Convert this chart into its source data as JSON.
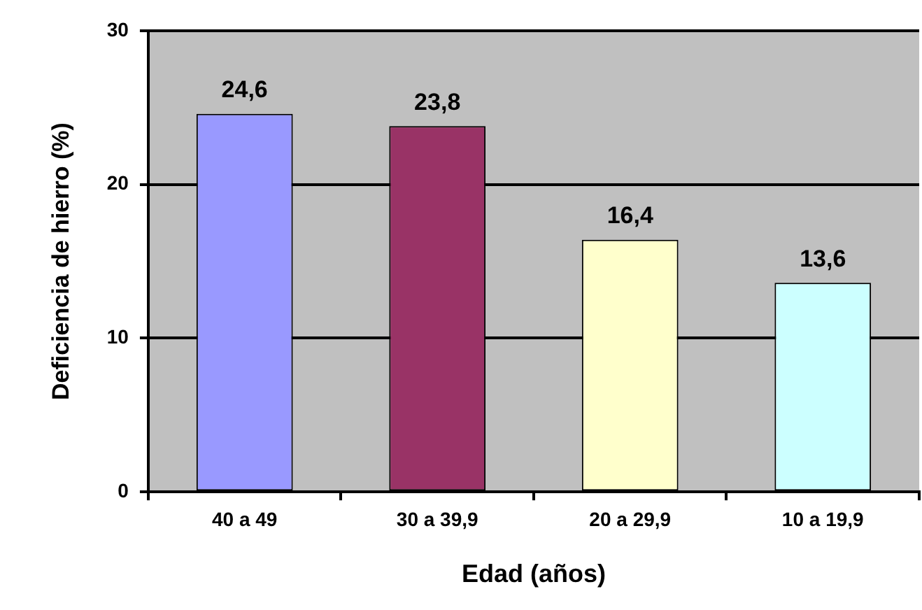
{
  "chart_data": {
    "type": "bar",
    "xlabel": "Edad (años)",
    "ylabel": "Deficiencia de hierro (%)",
    "categories": [
      "40 a 49",
      "30 a 39,9",
      "20 a 29,9",
      "10 a 19,9"
    ],
    "values": [
      24.6,
      23.8,
      16.4,
      13.6
    ],
    "colors": [
      "#9999ff",
      "#993366",
      "#ffffcc",
      "#ccffff"
    ],
    "value_labels": [
      "24,6",
      "23,8",
      "16,4",
      "13,6"
    ],
    "ylim": [
      0,
      30
    ],
    "yticks": [
      0,
      10,
      20,
      30
    ],
    "grid": "y",
    "legend": false
  }
}
